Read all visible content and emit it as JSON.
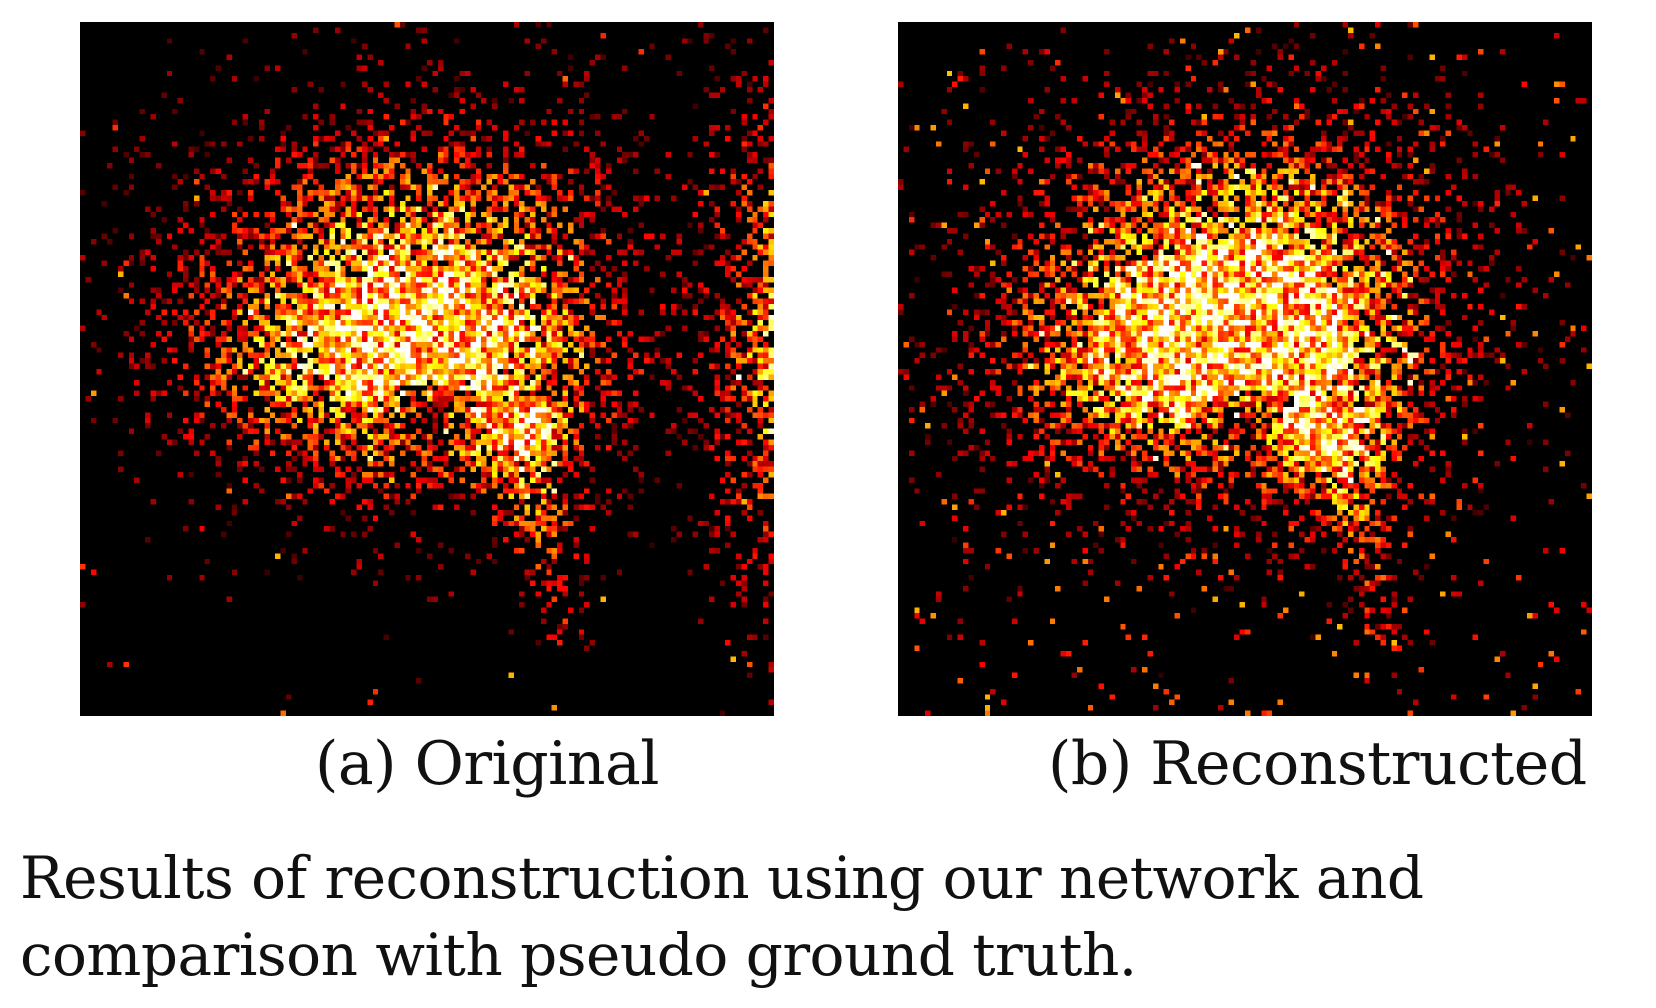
{
  "figure": {
    "panels": [
      {
        "id": "a",
        "caption": "(a) Original",
        "colormap": "hot",
        "image": "fluorescence-cell-microscopy"
      },
      {
        "id": "b",
        "caption": "(b) Reconstructed",
        "colormap": "hot",
        "image": "fluorescence-cell-microscopy"
      }
    ],
    "caption_lines": [
      "Results of reconstruction using our network and",
      "comparison with pseudo ground truth."
    ]
  }
}
